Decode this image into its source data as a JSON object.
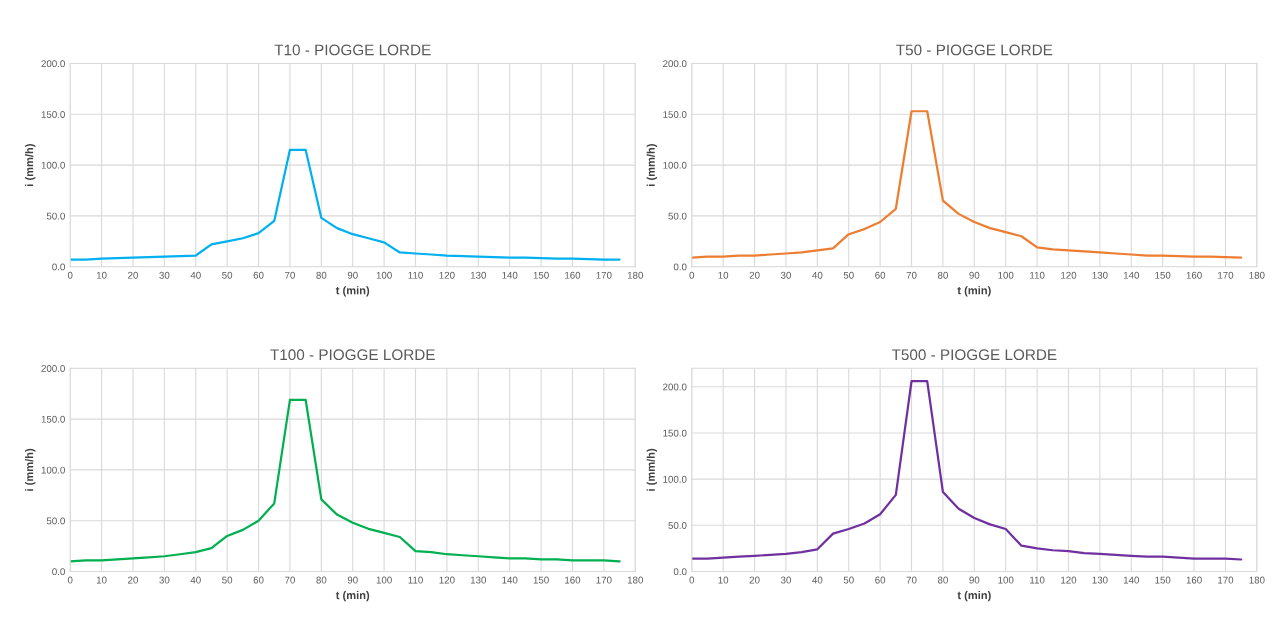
{
  "chart_data": [
    {
      "type": "line",
      "title": "T10 - PIOGGE LORDE",
      "xlabel": "t (min)",
      "ylabel": "i (mm/h)",
      "grid": true,
      "legend": false,
      "marker": "none",
      "line_style": "solid",
      "x": [
        0,
        5,
        10,
        15,
        20,
        25,
        30,
        35,
        40,
        45,
        50,
        55,
        60,
        65,
        70,
        75,
        80,
        85,
        90,
        95,
        100,
        105,
        110,
        115,
        120,
        125,
        130,
        135,
        140,
        145,
        150,
        155,
        160,
        165,
        170,
        175
      ],
      "series": [
        {
          "color": "#00b0f0",
          "values": [
            7,
            7,
            8,
            8.5,
            9,
            9.5,
            10,
            10.5,
            11,
            22,
            25,
            28,
            33,
            45,
            115,
            115,
            48,
            38,
            32,
            28,
            24,
            14,
            13,
            12,
            11,
            10.5,
            10,
            9.5,
            9,
            9,
            8.5,
            8,
            8,
            7.5,
            7,
            7
          ]
        }
      ],
      "xlim": [
        0,
        180
      ],
      "xticks": [
        0,
        10,
        20,
        30,
        40,
        50,
        60,
        70,
        80,
        90,
        100,
        110,
        120,
        130,
        140,
        150,
        160,
        170,
        180
      ],
      "ylim": [
        0,
        200
      ],
      "yticks": [
        {
          "value": 0,
          "label": "0.0"
        },
        {
          "value": 50,
          "label": "50.0"
        },
        {
          "value": 100,
          "label": "100.0"
        },
        {
          "value": 150,
          "label": "150.0"
        },
        {
          "value": 200,
          "label": "200.0"
        }
      ]
    },
    {
      "type": "line",
      "title": "T50 - PIOGGE LORDE",
      "xlabel": "t (min)",
      "ylabel": "i (mm/h)",
      "grid": true,
      "legend": false,
      "marker": "none",
      "line_style": "solid",
      "x": [
        0,
        5,
        10,
        15,
        20,
        25,
        30,
        35,
        40,
        45,
        50,
        55,
        60,
        65,
        70,
        75,
        80,
        85,
        90,
        95,
        100,
        105,
        110,
        115,
        120,
        125,
        130,
        135,
        140,
        145,
        150,
        155,
        160,
        165,
        170,
        175
      ],
      "series": [
        {
          "color": "#ed7d31",
          "values": [
            9,
            10,
            10,
            11,
            11,
            12,
            13,
            14,
            16,
            18,
            32,
            37,
            44,
            57,
            153,
            153,
            65,
            52,
            44,
            38,
            34,
            30,
            19,
            17,
            16,
            15,
            14,
            13,
            12,
            11,
            11,
            10.5,
            10,
            10,
            9.5,
            9
          ]
        }
      ],
      "xlim": [
        0,
        180
      ],
      "xticks": [
        0,
        10,
        20,
        30,
        40,
        50,
        60,
        70,
        80,
        90,
        100,
        110,
        120,
        130,
        140,
        150,
        160,
        170,
        180
      ],
      "ylim": [
        0,
        200
      ],
      "yticks": [
        {
          "value": 0,
          "label": "0.0"
        },
        {
          "value": 50,
          "label": "50.0"
        },
        {
          "value": 100,
          "label": "100.0"
        },
        {
          "value": 150,
          "label": "150.0"
        },
        {
          "value": 200,
          "label": "200.0"
        }
      ]
    },
    {
      "type": "line",
      "title": "T100 - PIOGGE LORDE",
      "xlabel": "t (min)",
      "ylabel": "i (mm/h)",
      "grid": true,
      "legend": false,
      "marker": "none",
      "line_style": "solid",
      "x": [
        0,
        5,
        10,
        15,
        20,
        25,
        30,
        35,
        40,
        45,
        50,
        55,
        60,
        65,
        70,
        75,
        80,
        85,
        90,
        95,
        100,
        105,
        110,
        115,
        120,
        125,
        130,
        135,
        140,
        145,
        150,
        155,
        160,
        165,
        170,
        175
      ],
      "series": [
        {
          "color": "#00b050",
          "values": [
            10,
            11,
            11,
            12,
            13,
            14,
            15,
            17,
            19,
            23,
            35,
            41,
            50,
            67,
            169,
            169,
            71,
            56,
            48,
            42,
            38,
            34,
            20,
            19,
            17,
            16,
            15,
            14,
            13,
            13,
            12,
            12,
            11,
            11,
            11,
            10
          ]
        }
      ],
      "xlim": [
        0,
        180
      ],
      "xticks": [
        0,
        10,
        20,
        30,
        40,
        50,
        60,
        70,
        80,
        90,
        100,
        110,
        120,
        130,
        140,
        150,
        160,
        170,
        180
      ],
      "ylim": [
        0,
        200
      ],
      "yticks": [
        {
          "value": 0,
          "label": "0.0"
        },
        {
          "value": 50,
          "label": "50.0"
        },
        {
          "value": 100,
          "label": "100.0"
        },
        {
          "value": 150,
          "label": "150.0"
        },
        {
          "value": 200,
          "label": "200.0"
        }
      ]
    },
    {
      "type": "line",
      "title": "T500 - PIOGGE LORDE",
      "xlabel": "t (min)",
      "ylabel": "i (mm/h)",
      "grid": true,
      "legend": false,
      "marker": "none",
      "line_style": "solid",
      "x": [
        0,
        5,
        10,
        15,
        20,
        25,
        30,
        35,
        40,
        45,
        50,
        55,
        60,
        65,
        70,
        75,
        80,
        85,
        90,
        95,
        100,
        105,
        110,
        115,
        120,
        125,
        130,
        135,
        140,
        145,
        150,
        155,
        160,
        165,
        170,
        175
      ],
      "series": [
        {
          "color": "#7030a0",
          "values": [
            14,
            14,
            15,
            16,
            17,
            18,
            19,
            21,
            24,
            41,
            46,
            52,
            62,
            83,
            206,
            206,
            86,
            68,
            58,
            51,
            46,
            28,
            25,
            23,
            22,
            20,
            19,
            18,
            17,
            16,
            16,
            15,
            14,
            14,
            14,
            13
          ]
        }
      ],
      "xlim": [
        0,
        180
      ],
      "xticks": [
        0,
        10,
        20,
        30,
        40,
        50,
        60,
        70,
        80,
        90,
        100,
        110,
        120,
        130,
        140,
        150,
        160,
        170,
        180
      ],
      "ylim": [
        0,
        220
      ],
      "yticks": [
        {
          "value": 0,
          "label": "0.0"
        },
        {
          "value": 50,
          "label": "50.0"
        },
        {
          "value": 100,
          "label": "100.0"
        },
        {
          "value": 150,
          "label": "150.0"
        },
        {
          "value": 200,
          "label": "200.0"
        }
      ]
    }
  ]
}
